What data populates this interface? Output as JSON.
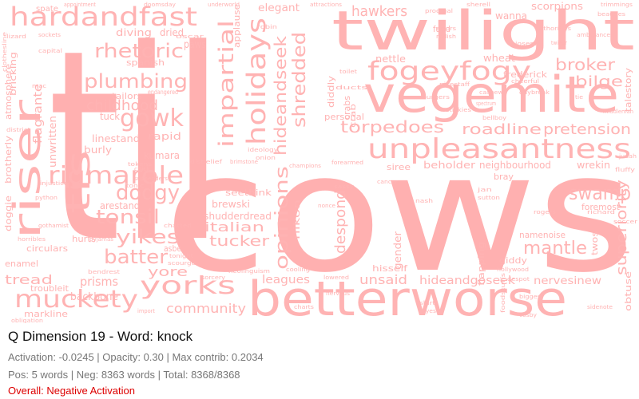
{
  "title": "Q Dimension 19 - Word: knock",
  "stats": {
    "line1": "Activation: -0.0245 | Opacity: 0.30 | Max contrib: 0.2034",
    "line2": "Pos: 5 words | Neg: 8363 words | Total: 8368/8368"
  },
  "overall": "Overall: Negative Activation",
  "colors": {
    "word_fill": "#ffb3b3",
    "overall_text": "#dd0000",
    "stats_text": "#777777"
  },
  "cloud": {
    "big_words": [
      "til",
      "cows",
      "twilight",
      "vegemite",
      "betterworse",
      "hardandfast",
      "unpleasantness",
      "fogeyfogy",
      "rigmarole",
      "riser",
      "tis",
      "muckety",
      "yorks",
      "holidays",
      "impartial",
      "hideandseek",
      "shredded",
      "plumbing",
      "rhetoric",
      "gowk",
      "dodgy",
      "tonsil",
      "yikes",
      "batter",
      "swamp",
      "mantle",
      "opinions",
      "superiority",
      "torpedoes",
      "roadline",
      "pretension",
      "broker",
      "bilge",
      "childhood",
      "hawkers",
      "despond",
      "tucker",
      "italian",
      "community",
      "tread",
      "unsaid",
      "hideandgoseek",
      "yore",
      "leagues",
      "elegant",
      "prisms",
      "backbone",
      "nervesinew"
    ],
    "medium_words": [
      "scorpions",
      "wanna",
      "flagrante",
      "unwritten",
      "diving",
      "dried",
      "paws",
      "spanish",
      "rapid",
      "kumara",
      "linestand",
      "burly",
      "tuck",
      "tailors",
      "atmosphere",
      "brotherly",
      "doggie",
      "arestand",
      "brewski",
      "seethink",
      "shudderdread",
      "enamel",
      "circulars",
      "hurts",
      "asbe",
      "markline",
      "troubleit",
      "hisself",
      "gender",
      "siree",
      "beholder",
      "neighbourhood",
      "bray",
      "wrekin",
      "foremost",
      "namenoise",
      "twos",
      "giddy",
      "flapping",
      "nikon",
      "personal",
      "nettle",
      "wheat",
      "frederick",
      "talestory",
      "obtuse",
      "bricking",
      "fund",
      "diddly",
      "crabs",
      "applause",
      "spate",
      "crab",
      "endangered"
    ],
    "small_words": [
      "appointment",
      "doomsday",
      "underworld",
      "attractions",
      "sherell",
      "trimmings",
      "lizard",
      "errors",
      "radish",
      "capital",
      "sockets",
      "prodigal",
      "authorities",
      "ambulance",
      "beauties",
      "clothesline",
      "mac",
      "joseph",
      "cheerful",
      "middleman",
      "district",
      "stickies",
      "chick",
      "tokens",
      "ideology",
      "onion",
      "champions",
      "forearmed",
      "sassy",
      "nonce",
      "cancer",
      "python",
      "injustice",
      "pyjamas",
      "gothamist",
      "horribles",
      "cooling",
      "soccer",
      "fluffy",
      "judah",
      "neolinguism",
      "richard",
      "rogers",
      "sidenote",
      "biggest",
      "cosby",
      "skirt",
      "ayes",
      "charts",
      "nervous",
      "foodstuffs",
      "despot",
      "hollywood",
      "jan",
      "sutton",
      "chatted",
      "scourge",
      "tonight",
      "bendrest",
      "import",
      "obligation",
      "brimstone",
      "disbelief",
      "suspenders",
      "tonic",
      "sorcery",
      "lowered",
      "twitter",
      "oscar",
      "spectrum",
      "cashew",
      "tie",
      "daybreak",
      "pikestaff",
      "bellboy",
      "toilet",
      "ducts",
      "burgers",
      "robin",
      "nash"
    ]
  }
}
